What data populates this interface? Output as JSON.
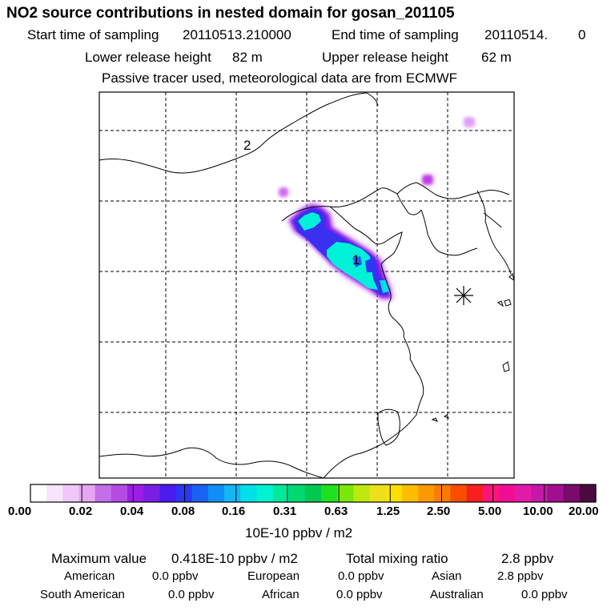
{
  "title": "NO2 source contributions in nested domain for gosan_201105",
  "header": {
    "start_label": "Start time of sampling",
    "start_value": "20110513.210000",
    "end_label": "End time of sampling",
    "end_value": "20110514.",
    "end_suffix": "0",
    "lower_label": "Lower release height",
    "lower_value": "82 m",
    "upper_label": "Upper release height",
    "upper_value": "62 m",
    "tracer_note": "Passive tracer used, meteorological data are from ECMWF"
  },
  "map": {
    "source_markers": [
      "1",
      "2"
    ],
    "receptor_symbol": "asterisk-icon"
  },
  "colorbar": {
    "colors": [
      "#ffffff",
      "#f8e4fb",
      "#f0c8f7",
      "#e7a6f2",
      "#c46ee8",
      "#b64be4",
      "#9b1ee6",
      "#7a1ee6",
      "#4a1cf0",
      "#2c37f2",
      "#1a62f4",
      "#0e8ef6",
      "#14b6f3",
      "#00e0e8",
      "#00f2d2",
      "#00e89a",
      "#00d870",
      "#00c850",
      "#1ee01e",
      "#7ae80a",
      "#bdea0e",
      "#ece01a",
      "#fce100",
      "#fcbd00",
      "#fb9a00",
      "#fa7a00",
      "#fa4d00",
      "#f71f1f",
      "#fc1478",
      "#f10e96",
      "#e21aa8",
      "#c418a8",
      "#a0108e",
      "#7a0a6c",
      "#4a0a40"
    ],
    "tick_labels": [
      "0.00",
      "0.02",
      "0.04",
      "0.08",
      "0.16",
      "0.31",
      "0.63",
      "1.25",
      "2.50",
      "5.00",
      "10.00",
      "20.00"
    ],
    "unit": "10E-10 ppbv / m2"
  },
  "summary": {
    "max_label": "Maximum value",
    "max_value": "0.418E-10 ppbv / m2",
    "total_label": "Total mixing ratio",
    "total_value": "2.8 ppbv",
    "regions": [
      {
        "name": "American",
        "value": "0.0 ppbv"
      },
      {
        "name": "European",
        "value": "0.0 ppbv"
      },
      {
        "name": "Asian",
        "value": "2.8 ppbv"
      },
      {
        "name": "South American",
        "value": "0.0 ppbv"
      },
      {
        "name": "African",
        "value": "0.0 ppbv"
      },
      {
        "name": "Australian",
        "value": "0.0 ppbv"
      }
    ]
  }
}
